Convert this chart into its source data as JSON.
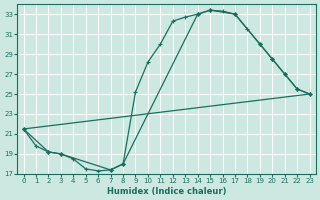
{
  "xlabel": "Humidex (Indice chaleur)",
  "bg_color": "#cce8e0",
  "grid_color": "#b8d8d0",
  "line_color": "#1a6e60",
  "xlim": [
    -0.5,
    23.5
  ],
  "ylim": [
    17,
    34
  ],
  "xticks": [
    0,
    1,
    2,
    3,
    4,
    5,
    6,
    7,
    8,
    9,
    10,
    11,
    12,
    13,
    14,
    15,
    16,
    17,
    18,
    19,
    20,
    21,
    22,
    23
  ],
  "yticks": [
    17,
    19,
    21,
    23,
    25,
    27,
    29,
    31,
    33
  ],
  "curve1_x": [
    0,
    1,
    2,
    3,
    4,
    5,
    6,
    7,
    8,
    9,
    10,
    11,
    12,
    13,
    14,
    15,
    16,
    17,
    18,
    19,
    20,
    21,
    22,
    23
  ],
  "curve1_y": [
    21.5,
    19.8,
    19.2,
    19.0,
    18.5,
    17.5,
    17.3,
    17.4,
    18.0,
    25.2,
    28.2,
    30.0,
    32.3,
    32.7,
    33.0,
    33.4,
    33.3,
    33.0,
    31.5,
    30.0,
    28.5,
    27.0,
    25.5,
    25.0
  ],
  "curve2_x": [
    0,
    2,
    3,
    7,
    8,
    14,
    15,
    17,
    19,
    20,
    21,
    22,
    23
  ],
  "curve2_y": [
    21.5,
    19.2,
    19.0,
    17.4,
    18.0,
    33.0,
    33.4,
    33.0,
    30.0,
    28.5,
    27.0,
    25.5,
    25.0
  ],
  "curve3_x": [
    0,
    23
  ],
  "curve3_y": [
    21.5,
    25.0
  ]
}
